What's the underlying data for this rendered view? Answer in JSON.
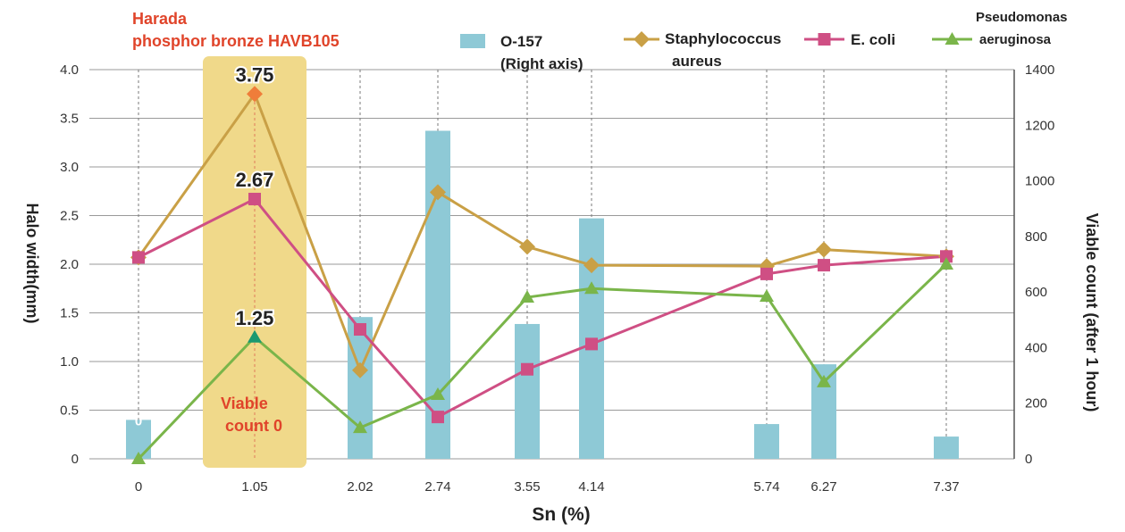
{
  "chart_data": {
    "type": "bar+line",
    "title_lines": [
      "Harada",
      "phosphor bronze HAVB105"
    ],
    "xlabel": "Sn (%)",
    "ylabel_left": "Halo width(mm)",
    "ylabel_right": "Viable count (after 1 hour)",
    "x": [
      0,
      1.05,
      2.02,
      2.74,
      3.55,
      4.14,
      5.74,
      6.27,
      7.37
    ],
    "x_tick_labels": [
      "0",
      "1.05",
      "2.02",
      "2.74",
      "3.55",
      "4.14",
      "5.74",
      "6.27",
      "7.37"
    ],
    "y_left": {
      "ticks": [
        "0",
        "0.5",
        "1.0",
        "1.5",
        "2.0",
        "2.5",
        "3.0",
        "3.5",
        "4.0"
      ],
      "lim": [
        0,
        4.0
      ]
    },
    "y_right": {
      "ticks": [
        "0",
        "200",
        "400",
        "600",
        "800",
        "1000",
        "1200",
        "1400"
      ],
      "lim": [
        0,
        1400
      ]
    },
    "grid": true,
    "highlight": {
      "x": 1.05,
      "note_lines": [
        "Viable",
        "count 0"
      ]
    },
    "zero_label": "0",
    "bar_series": {
      "name_lines": [
        "O-157",
        "(Right axis)"
      ],
      "axis": "right",
      "color": "#8ec9d6",
      "values": [
        140,
        0,
        510,
        1180,
        485,
        865,
        125,
        340,
        80
      ]
    },
    "line_series": [
      {
        "name_lines": [
          "Staphylococcus",
          "aureus"
        ],
        "marker": "diamond",
        "color": "#c9a046",
        "values": [
          2.07,
          3.75,
          0.91,
          2.74,
          2.18,
          1.99,
          1.98,
          2.15,
          2.08
        ],
        "labeled_value": "3.75"
      },
      {
        "name_lines": [
          "E. coli"
        ],
        "marker": "square",
        "color": "#cf4f84",
        "values": [
          2.07,
          2.67,
          1.33,
          0.43,
          0.92,
          1.18,
          1.9,
          1.99,
          2.08
        ],
        "labeled_value": "2.67"
      },
      {
        "name_lines": [
          "Pseudomonas",
          "aeruginosa"
        ],
        "marker": "triangle",
        "color": "#7ab54a",
        "values": [
          0.0,
          1.25,
          0.32,
          0.66,
          1.66,
          1.75,
          1.67,
          0.79,
          2.0
        ],
        "labeled_value": "1.25"
      }
    ]
  }
}
